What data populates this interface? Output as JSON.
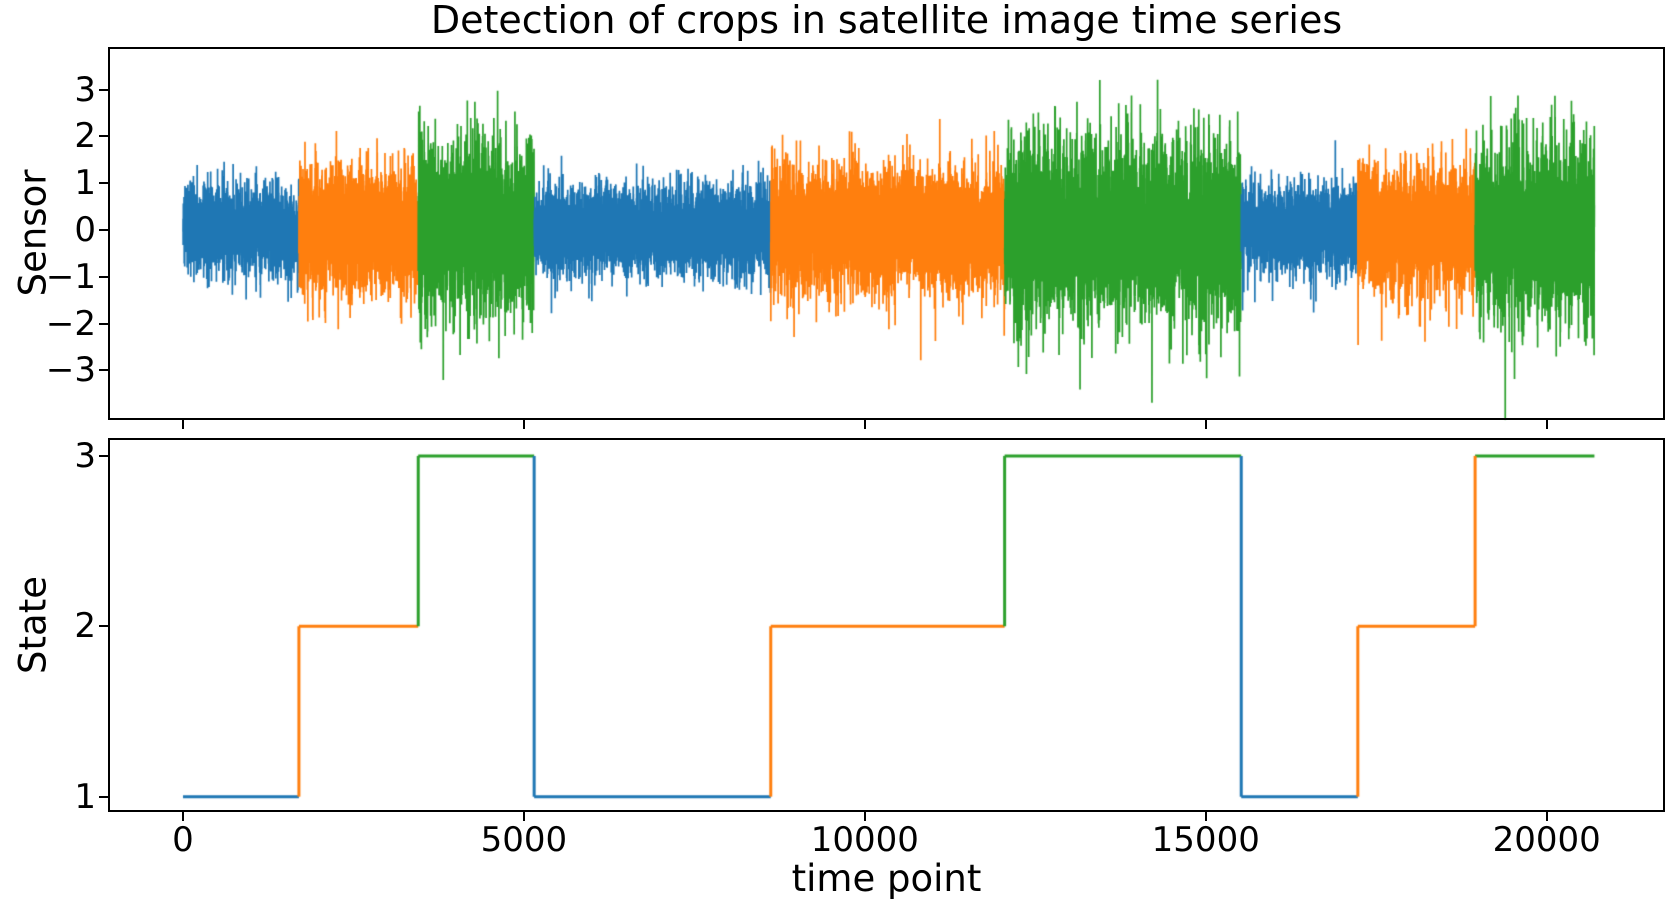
{
  "chart_data": {
    "type": "line",
    "title": "Detection of crops in satellite image time series",
    "xlabel": "time point",
    "xlim": [
      -1100,
      21735
    ],
    "xticks": {
      "values": [
        0,
        5000,
        10000,
        15000,
        20000
      ],
      "labels": [
        "0",
        "5000",
        "10000",
        "15000",
        "20000"
      ]
    },
    "palette": {
      "1": "#1f77b4",
      "2": "#ff7f0e",
      "3": "#2ca02c"
    },
    "segments": [
      {
        "state": 1,
        "start": 0,
        "end": 1700,
        "mean": 0,
        "sigma": 0.48
      },
      {
        "state": 2,
        "start": 1700,
        "end": 3450,
        "mean": 0,
        "sigma": 0.68
      },
      {
        "state": 3,
        "start": 3450,
        "end": 5150,
        "mean": 0,
        "sigma": 0.95
      },
      {
        "state": 1,
        "start": 5150,
        "end": 8620,
        "mean": 0,
        "sigma": 0.48
      },
      {
        "state": 2,
        "start": 8620,
        "end": 12050,
        "mean": 0,
        "sigma": 0.68
      },
      {
        "state": 3,
        "start": 12050,
        "end": 15520,
        "mean": 0,
        "sigma": 0.95
      },
      {
        "state": 1,
        "start": 15520,
        "end": 17230,
        "mean": 0,
        "sigma": 0.48
      },
      {
        "state": 2,
        "start": 17230,
        "end": 18950,
        "mean": 0,
        "sigma": 0.68
      },
      {
        "state": 3,
        "start": 18950,
        "end": 20700,
        "mean": 0,
        "sigma": 0.95
      }
    ],
    "transition_vertical_color_states": [
      2,
      3,
      1,
      2,
      3,
      1,
      2,
      2
    ],
    "subplots": [
      {
        "name": "sensor",
        "ylabel": "Sensor",
        "ylim": [
          -4.06,
          3.91
        ],
        "yticks": {
          "values": [
            3,
            2,
            1,
            0,
            -1,
            -2,
            -3
          ],
          "labels": [
            "3",
            "2",
            "1",
            "0",
            "−1",
            "−2",
            "−3"
          ]
        },
        "series_desc": "noisy sensor signal, zero mean, std depends on segment state"
      },
      {
        "name": "state",
        "ylabel": "State",
        "ylim": [
          0.91,
          3.105
        ],
        "yticks": {
          "values": [
            3,
            2,
            1
          ],
          "labels": [
            "3",
            "2",
            "1"
          ]
        },
        "series_desc": "piecewise-constant hidden state (1, 2, 3)"
      }
    ]
  }
}
